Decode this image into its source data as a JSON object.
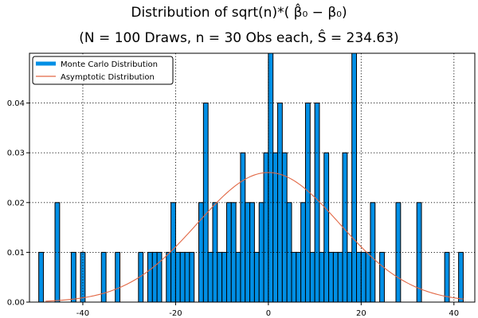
{
  "chart_data": {
    "type": "bar",
    "title": "Distribution of sqrt(n)*( β̂₀ − β₀)",
    "subtitle": "(N = 100 Draws, n = 30 Obs each, Ŝ = 234.63)",
    "xlabel": "",
    "ylabel": "",
    "xlim": [
      -51.5,
      44.5
    ],
    "ylim": [
      0,
      0.05
    ],
    "xticks": [
      -40,
      -20,
      0,
      20,
      40
    ],
    "xtick_labels": [
      "-40",
      "-20",
      "0",
      "20",
      "40"
    ],
    "yticks": [
      0.0,
      0.01,
      0.02,
      0.03,
      0.04
    ],
    "ytick_labels": [
      "0.00",
      "0.01",
      "0.02",
      "0.03",
      "0.04"
    ],
    "grid": true,
    "legend_position": "upper-left",
    "bin_width": 1.0,
    "series": [
      {
        "name": "Monte Carlo Distribution",
        "kind": "histogram",
        "color": "#008fe5",
        "edgecolor": "#000000",
        "bins": [
          {
            "x": -49,
            "y": 0.01
          },
          {
            "x": -45.5,
            "y": 0.02
          },
          {
            "x": -42,
            "y": 0.01
          },
          {
            "x": -40,
            "y": 0.01
          },
          {
            "x": -35.5,
            "y": 0.01
          },
          {
            "x": -32.5,
            "y": 0.01
          },
          {
            "x": -27.5,
            "y": 0.01
          },
          {
            "x": -25.5,
            "y": 0.01
          },
          {
            "x": -24.5,
            "y": 0.01
          },
          {
            "x": -23.5,
            "y": 0.01
          },
          {
            "x": -21.5,
            "y": 0.01
          },
          {
            "x": -20.5,
            "y": 0.02
          },
          {
            "x": -19.5,
            "y": 0.01
          },
          {
            "x": -18.5,
            "y": 0.01
          },
          {
            "x": -17.5,
            "y": 0.01
          },
          {
            "x": -16.5,
            "y": 0.01
          },
          {
            "x": -14.5,
            "y": 0.02
          },
          {
            "x": -13.5,
            "y": 0.04
          },
          {
            "x": -12.5,
            "y": 0.01
          },
          {
            "x": -11.5,
            "y": 0.02
          },
          {
            "x": -10.5,
            "y": 0.01
          },
          {
            "x": -9.5,
            "y": 0.01
          },
          {
            "x": -8.5,
            "y": 0.02
          },
          {
            "x": -7.5,
            "y": 0.02
          },
          {
            "x": -6.5,
            "y": 0.01
          },
          {
            "x": -5.5,
            "y": 0.03
          },
          {
            "x": -4.5,
            "y": 0.02
          },
          {
            "x": -3.5,
            "y": 0.02
          },
          {
            "x": -2.5,
            "y": 0.01
          },
          {
            "x": -1.5,
            "y": 0.02
          },
          {
            "x": -0.5,
            "y": 0.03
          },
          {
            "x": 0.5,
            "y": 0.05
          },
          {
            "x": 1.5,
            "y": 0.03
          },
          {
            "x": 2.5,
            "y": 0.04
          },
          {
            "x": 3.5,
            "y": 0.03
          },
          {
            "x": 4.5,
            "y": 0.02
          },
          {
            "x": 5.5,
            "y": 0.01
          },
          {
            "x": 6.5,
            "y": 0.01
          },
          {
            "x": 7.5,
            "y": 0.02
          },
          {
            "x": 8.5,
            "y": 0.04
          },
          {
            "x": 9.5,
            "y": 0.01
          },
          {
            "x": 10.5,
            "y": 0.04
          },
          {
            "x": 11.5,
            "y": 0.01
          },
          {
            "x": 12.5,
            "y": 0.03
          },
          {
            "x": 13.5,
            "y": 0.01
          },
          {
            "x": 14.5,
            "y": 0.01
          },
          {
            "x": 15.5,
            "y": 0.01
          },
          {
            "x": 16.5,
            "y": 0.03
          },
          {
            "x": 17.5,
            "y": 0.01
          },
          {
            "x": 18.5,
            "y": 0.05
          },
          {
            "x": 19.5,
            "y": 0.01
          },
          {
            "x": 20.5,
            "y": 0.01
          },
          {
            "x": 21.5,
            "y": 0.01
          },
          {
            "x": 22.5,
            "y": 0.02
          },
          {
            "x": 24.5,
            "y": 0.01
          },
          {
            "x": 28,
            "y": 0.02
          },
          {
            "x": 32.5,
            "y": 0.02
          },
          {
            "x": 38.5,
            "y": 0.01
          },
          {
            "x": 41.5,
            "y": 0.01
          }
        ]
      },
      {
        "name": "Asymptotic Distribution",
        "kind": "line",
        "color": "#e26845",
        "mean": 0,
        "sd": 15.32,
        "x_range": [
          -48,
          42
        ]
      }
    ]
  }
}
